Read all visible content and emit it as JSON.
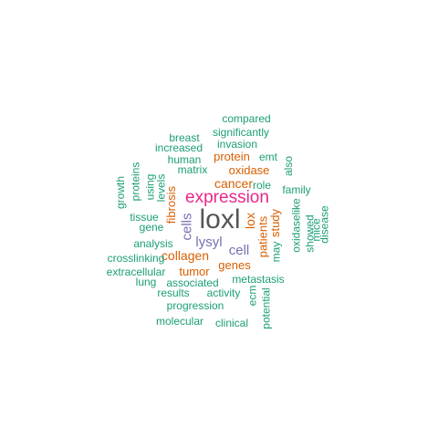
{
  "colors": {
    "teal": "#1b9e77",
    "orange": "#d95f02",
    "purple": "#7570b3",
    "magenta": "#e7298a",
    "gray": "#555555"
  },
  "words": [
    {
      "text": "loxl",
      "color": "gray",
      "size": 30,
      "vertical": false
    },
    {
      "text": "expression",
      "color": "magenta",
      "size": 19,
      "vertical": false
    },
    {
      "text": "cells",
      "color": "purple",
      "size": 15,
      "vertical": true
    },
    {
      "text": "lysyl",
      "color": "purple",
      "size": 15,
      "vertical": false
    },
    {
      "text": "cell",
      "color": "purple",
      "size": 15,
      "vertical": false
    },
    {
      "text": "cancer",
      "color": "orange",
      "size": 14,
      "vertical": false
    },
    {
      "text": "lox",
      "color": "orange",
      "size": 14,
      "vertical": true
    },
    {
      "text": "collagen",
      "color": "orange",
      "size": 14,
      "vertical": false
    },
    {
      "text": "genes",
      "color": "orange",
      "size": 13,
      "vertical": false
    },
    {
      "text": "tumor",
      "color": "orange",
      "size": 13,
      "vertical": false
    },
    {
      "text": "protein",
      "color": "orange",
      "size": 13,
      "vertical": false
    },
    {
      "text": "oxidase",
      "color": "orange",
      "size": 13,
      "vertical": false
    },
    {
      "text": "fibrosis",
      "color": "orange",
      "size": 13,
      "vertical": true
    },
    {
      "text": "patients",
      "color": "orange",
      "size": 13,
      "vertical": true
    },
    {
      "text": "study",
      "color": "orange",
      "size": 13,
      "vertical": true
    },
    {
      "text": "compared",
      "color": "teal",
      "size": 12,
      "vertical": false
    },
    {
      "text": "significantly",
      "color": "teal",
      "size": 12,
      "vertical": false
    },
    {
      "text": "breast",
      "color": "teal",
      "size": 12,
      "vertical": false
    },
    {
      "text": "invasion",
      "color": "teal",
      "size": 12,
      "vertical": false
    },
    {
      "text": "increased",
      "color": "teal",
      "size": 12,
      "vertical": false
    },
    {
      "text": "human",
      "color": "teal",
      "size": 12,
      "vertical": false
    },
    {
      "text": "emt",
      "color": "teal",
      "size": 12,
      "vertical": false
    },
    {
      "text": "matrix",
      "color": "teal",
      "size": 12,
      "vertical": false
    },
    {
      "text": "also",
      "color": "teal",
      "size": 12,
      "vertical": true
    },
    {
      "text": "proteins",
      "color": "teal",
      "size": 12,
      "vertical": true
    },
    {
      "text": "growth",
      "color": "teal",
      "size": 12,
      "vertical": true
    },
    {
      "text": "using",
      "color": "teal",
      "size": 12,
      "vertical": true
    },
    {
      "text": "levels",
      "color": "teal",
      "size": 12,
      "vertical": true
    },
    {
      "text": "role",
      "color": "teal",
      "size": 12,
      "vertical": false
    },
    {
      "text": "family",
      "color": "teal",
      "size": 12,
      "vertical": false
    },
    {
      "text": "tissue",
      "color": "teal",
      "size": 12,
      "vertical": false
    },
    {
      "text": "gene",
      "color": "teal",
      "size": 12,
      "vertical": false
    },
    {
      "text": "oxidaselike",
      "color": "teal",
      "size": 12,
      "vertical": true
    },
    {
      "text": "showed",
      "color": "teal",
      "size": 12,
      "vertical": true
    },
    {
      "text": "mice",
      "color": "teal",
      "size": 12,
      "vertical": true
    },
    {
      "text": "disease",
      "color": "teal",
      "size": 12,
      "vertical": true
    },
    {
      "text": "analysis",
      "color": "teal",
      "size": 12,
      "vertical": false
    },
    {
      "text": "may",
      "color": "teal",
      "size": 12,
      "vertical": true
    },
    {
      "text": "crosslinking",
      "color": "teal",
      "size": 12,
      "vertical": false
    },
    {
      "text": "extracellular",
      "color": "teal",
      "size": 12,
      "vertical": false
    },
    {
      "text": "metastasis",
      "color": "teal",
      "size": 12,
      "vertical": false
    },
    {
      "text": "lung",
      "color": "teal",
      "size": 12,
      "vertical": false
    },
    {
      "text": "associated",
      "color": "teal",
      "size": 12,
      "vertical": false
    },
    {
      "text": "results",
      "color": "teal",
      "size": 12,
      "vertical": false
    },
    {
      "text": "activity",
      "color": "teal",
      "size": 12,
      "vertical": false
    },
    {
      "text": "ecm",
      "color": "teal",
      "size": 12,
      "vertical": true
    },
    {
      "text": "potential",
      "color": "teal",
      "size": 12,
      "vertical": true
    },
    {
      "text": "progression",
      "color": "teal",
      "size": 12,
      "vertical": false
    },
    {
      "text": "molecular",
      "color": "teal",
      "size": 12,
      "vertical": false
    },
    {
      "text": "clinical",
      "color": "teal",
      "size": 12,
      "vertical": false
    }
  ]
}
